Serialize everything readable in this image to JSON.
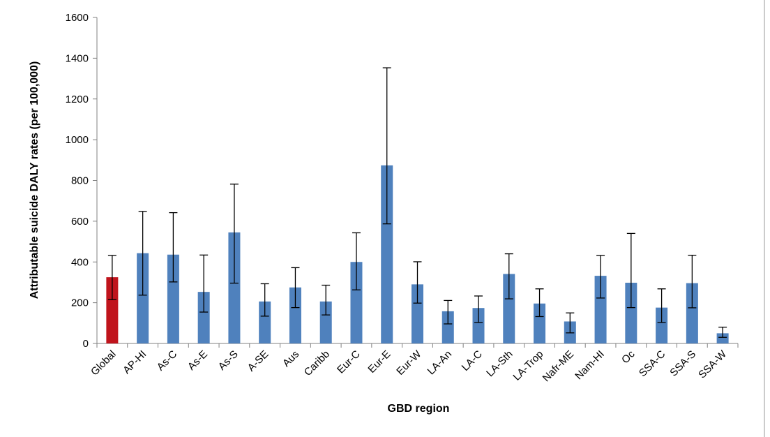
{
  "chart_data": {
    "type": "bar",
    "xlabel": "GBD region",
    "ylabel": "Attributable suicide DALY rates (per 100,000)",
    "ylim": [
      0,
      1600
    ],
    "yticks": [
      0,
      200,
      400,
      600,
      800,
      1000,
      1200,
      1400,
      1600
    ],
    "grid": false,
    "legend": "none",
    "colors": {
      "bar": "#4f81bd",
      "highlight": "#c0141c"
    },
    "categories": [
      "Global",
      "AP-HI",
      "As-C",
      "As-E",
      "As-S",
      "A-SE",
      "Aus",
      "Caribb",
      "Eur-C",
      "Eur-E",
      "Eur-W",
      "LA-An",
      "LA-C",
      "LA-Sth",
      "LA-Trop",
      "Nafr-ME",
      "Nam-HI",
      "Oc",
      "SSA-C",
      "SSA-S",
      "SSA-W"
    ],
    "values": [
      325,
      443,
      436,
      253,
      545,
      206,
      275,
      206,
      400,
      874,
      290,
      158,
      174,
      341,
      196,
      108,
      332,
      298,
      176,
      296,
      50
    ],
    "error_low": [
      215,
      237,
      302,
      154,
      296,
      134,
      176,
      140,
      263,
      587,
      198,
      96,
      103,
      219,
      132,
      52,
      223,
      176,
      103,
      175,
      30
    ],
    "error_high": [
      432,
      648,
      642,
      434,
      782,
      293,
      372,
      286,
      543,
      1353,
      401,
      211,
      233,
      440,
      268,
      150,
      432,
      540,
      268,
      433,
      80
    ],
    "highlight_index": 0
  }
}
